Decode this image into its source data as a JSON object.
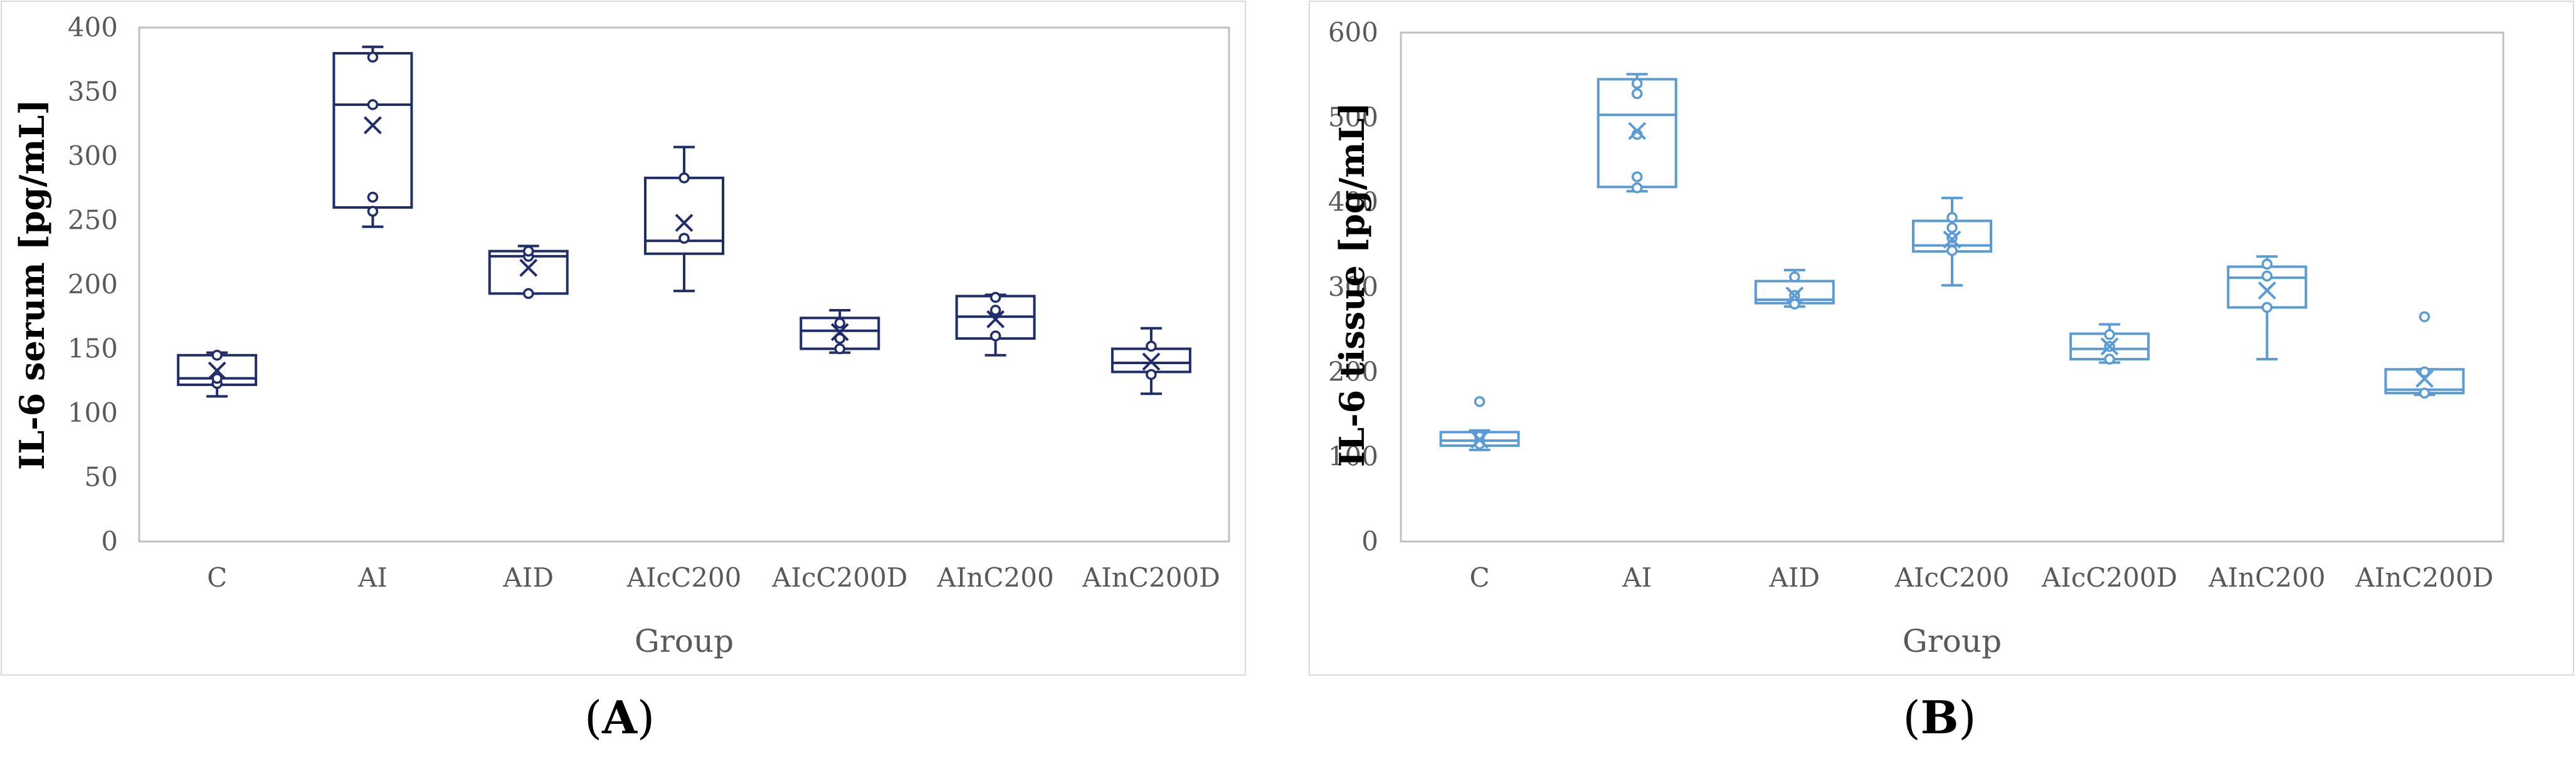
{
  "chart_data": [
    {
      "type": "box",
      "caption": "A",
      "xlabel": "Group",
      "ylabel": "IL-6 serum [pg/mL]",
      "ylim": [
        0,
        400
      ],
      "yticks": [
        0,
        50,
        100,
        150,
        200,
        250,
        300,
        350,
        400
      ],
      "color": "#1f2d6b",
      "categories": [
        "C",
        "AI",
        "AID",
        "AIcC200",
        "AIcC200D",
        "AInC200",
        "AInC200D"
      ],
      "boxes": [
        {
          "min": 113,
          "q1": 122,
          "median": 127,
          "q3": 145,
          "max": 147,
          "mean": 133,
          "points": [
            123,
            127,
            145
          ]
        },
        {
          "min": 245,
          "q1": 260,
          "median": 340,
          "q3": 380,
          "max": 385,
          "mean": 324,
          "points": [
            257,
            268,
            340,
            377
          ]
        },
        {
          "min": 193,
          "q1": 193,
          "median": 222,
          "q3": 226,
          "max": 230,
          "mean": 213,
          "points": [
            193,
            222,
            226
          ]
        },
        {
          "min": 195,
          "q1": 224,
          "median": 234,
          "q3": 283,
          "max": 307,
          "mean": 248,
          "points": [
            236,
            283
          ]
        },
        {
          "min": 147,
          "q1": 150,
          "median": 164,
          "q3": 174,
          "max": 180,
          "mean": 163,
          "points": [
            150,
            158,
            170
          ]
        },
        {
          "min": 145,
          "q1": 158,
          "median": 175,
          "q3": 191,
          "max": 192,
          "mean": 173,
          "points": [
            160,
            180,
            190
          ]
        },
        {
          "min": 115,
          "q1": 132,
          "median": 139,
          "q3": 150,
          "max": 166,
          "mean": 140,
          "points": [
            130,
            152
          ]
        }
      ]
    },
    {
      "type": "box",
      "caption": "B",
      "xlabel": "Group",
      "ylabel": "IL-6 tissue [pg/mL]",
      "ylim": [
        0,
        600
      ],
      "yticks": [
        0,
        100,
        200,
        300,
        400,
        500,
        600
      ],
      "color": "#5b9bd5",
      "categories": [
        "C",
        "AI",
        "AID",
        "AIcC200",
        "AIcC200D",
        "AInC200",
        "AInC200D"
      ],
      "boxes": [
        {
          "min": 108,
          "q1": 113,
          "median": 119,
          "q3": 129,
          "max": 131,
          "mean": 120,
          "points": [
            115,
            124,
            165
          ]
        },
        {
          "min": 413,
          "q1": 418,
          "median": 503,
          "q3": 545,
          "max": 551,
          "mean": 484,
          "points": [
            417,
            430,
            480,
            528,
            540
          ]
        },
        {
          "min": 277,
          "q1": 281,
          "median": 285,
          "q3": 307,
          "max": 320,
          "mean": 290,
          "points": [
            280,
            290,
            312
          ]
        },
        {
          "min": 302,
          "q1": 342,
          "median": 349,
          "q3": 378,
          "max": 405,
          "mean": 356,
          "points": [
            343,
            358,
            370,
            382
          ]
        },
        {
          "min": 211,
          "q1": 215,
          "median": 227,
          "q3": 245,
          "max": 256,
          "mean": 230,
          "points": [
            215,
            230,
            244
          ]
        },
        {
          "min": 215,
          "q1": 276,
          "median": 311,
          "q3": 324,
          "max": 336,
          "mean": 296,
          "points": [
            276,
            313,
            327
          ]
        },
        {
          "min": 173,
          "q1": 175,
          "median": 179,
          "q3": 203,
          "max": 203,
          "mean": 192,
          "points": [
            175,
            200,
            265
          ]
        }
      ]
    }
  ]
}
